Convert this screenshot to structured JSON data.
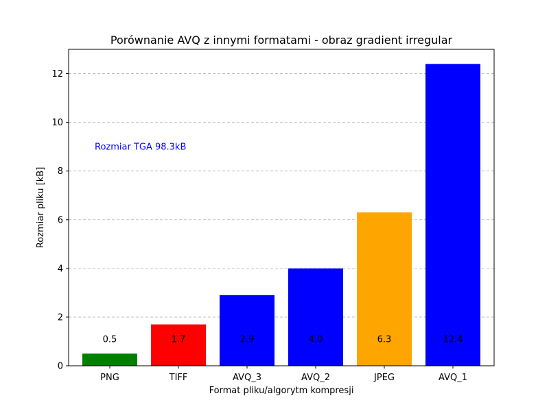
{
  "chart_data": {
    "type": "bar",
    "title": "Porównanie AVQ z innymi formatami - obraz gradient irregular",
    "xlabel": "Format pliku/algorytm kompresji",
    "ylabel": "Rozmiar pliku [kB]",
    "categories": [
      "PNG",
      "TIFF",
      "AVQ_3",
      "AVQ_2",
      "JPEG",
      "AVQ_1"
    ],
    "values": [
      0.5,
      1.7,
      2.9,
      4.0,
      6.3,
      12.4
    ],
    "value_labels": [
      "0.5",
      "1.7",
      "2.9",
      "4.0",
      "6.3",
      "12.4"
    ],
    "colors": [
      "#008000",
      "#ff0000",
      "#0000ff",
      "#0000ff",
      "#ffa500",
      "#0000ff"
    ],
    "ylim": [
      0,
      13
    ],
    "yticks": [
      0,
      2,
      4,
      6,
      8,
      10,
      12
    ],
    "grid": "y-dashed",
    "annotation": {
      "text": "Rozmiar TGA 98.3kB",
      "color": "#0000ff",
      "x_category_pos": -0.22,
      "y": 9.0
    }
  }
}
